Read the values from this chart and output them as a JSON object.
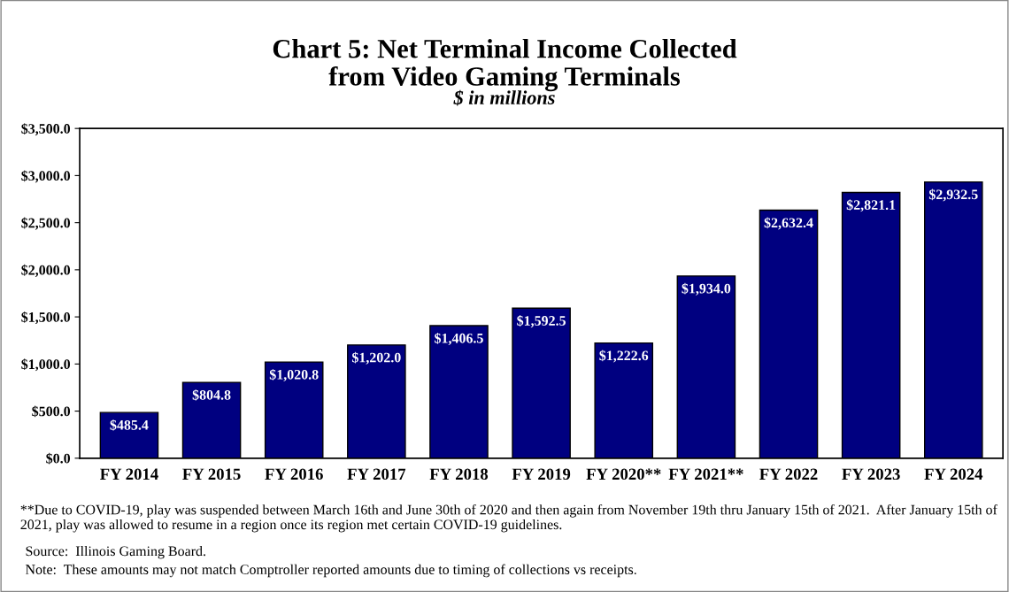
{
  "chart_data": {
    "type": "bar",
    "title": "Chart 5: Net Terminal Income Collected\nfrom Video Gaming Terminals",
    "subtitle": "$ in millions",
    "categories": [
      "FY 2014",
      "FY 2015",
      "FY 2016",
      "FY 2017",
      "FY 2018",
      "FY 2019",
      "FY 2020**",
      "FY 2021**",
      "FY 2022",
      "FY 2023",
      "FY 2024"
    ],
    "values": [
      485.4,
      804.8,
      1020.8,
      1202.0,
      1406.5,
      1592.5,
      1222.6,
      1934.0,
      2632.4,
      2821.1,
      2932.5
    ],
    "value_labels": [
      "$485.4",
      "$804.8",
      "$1,020.8",
      "$1,202.0",
      "$1,406.5",
      "$1,592.5",
      "$1,222.6",
      "$1,934.0",
      "$2,632.4",
      "$2,821.1",
      "$2,932.5"
    ],
    "color": "#000080",
    "ylim": [
      0,
      3500
    ],
    "yticks": [
      {
        "value": 0,
        "label": "$0.0"
      },
      {
        "value": 500,
        "label": "$500.0"
      },
      {
        "value": 1000,
        "label": "$1,000.0"
      },
      {
        "value": 1500,
        "label": "$1,500.0"
      },
      {
        "value": 2000,
        "label": "$2,000.0"
      },
      {
        "value": 2500,
        "label": "$2,500.0"
      },
      {
        "value": 3000,
        "label": "$3,000.0"
      },
      {
        "value": 3500,
        "label": "$3,500.0"
      }
    ],
    "grid": false,
    "annotations": [
      "**Due to COVID-19, play was suspended between March 16th and June 30th of 2020 and then again from November 19th thru January 15th of 2021.  After January 15th of 2021, play was allowed to resume in a region once its region met certain COVID-19 guidelines.",
      "Source:  Illinois Gaming Board.",
      "Note:  These amounts may not match Comptroller reported amounts due to timing of collections vs receipts."
    ]
  }
}
